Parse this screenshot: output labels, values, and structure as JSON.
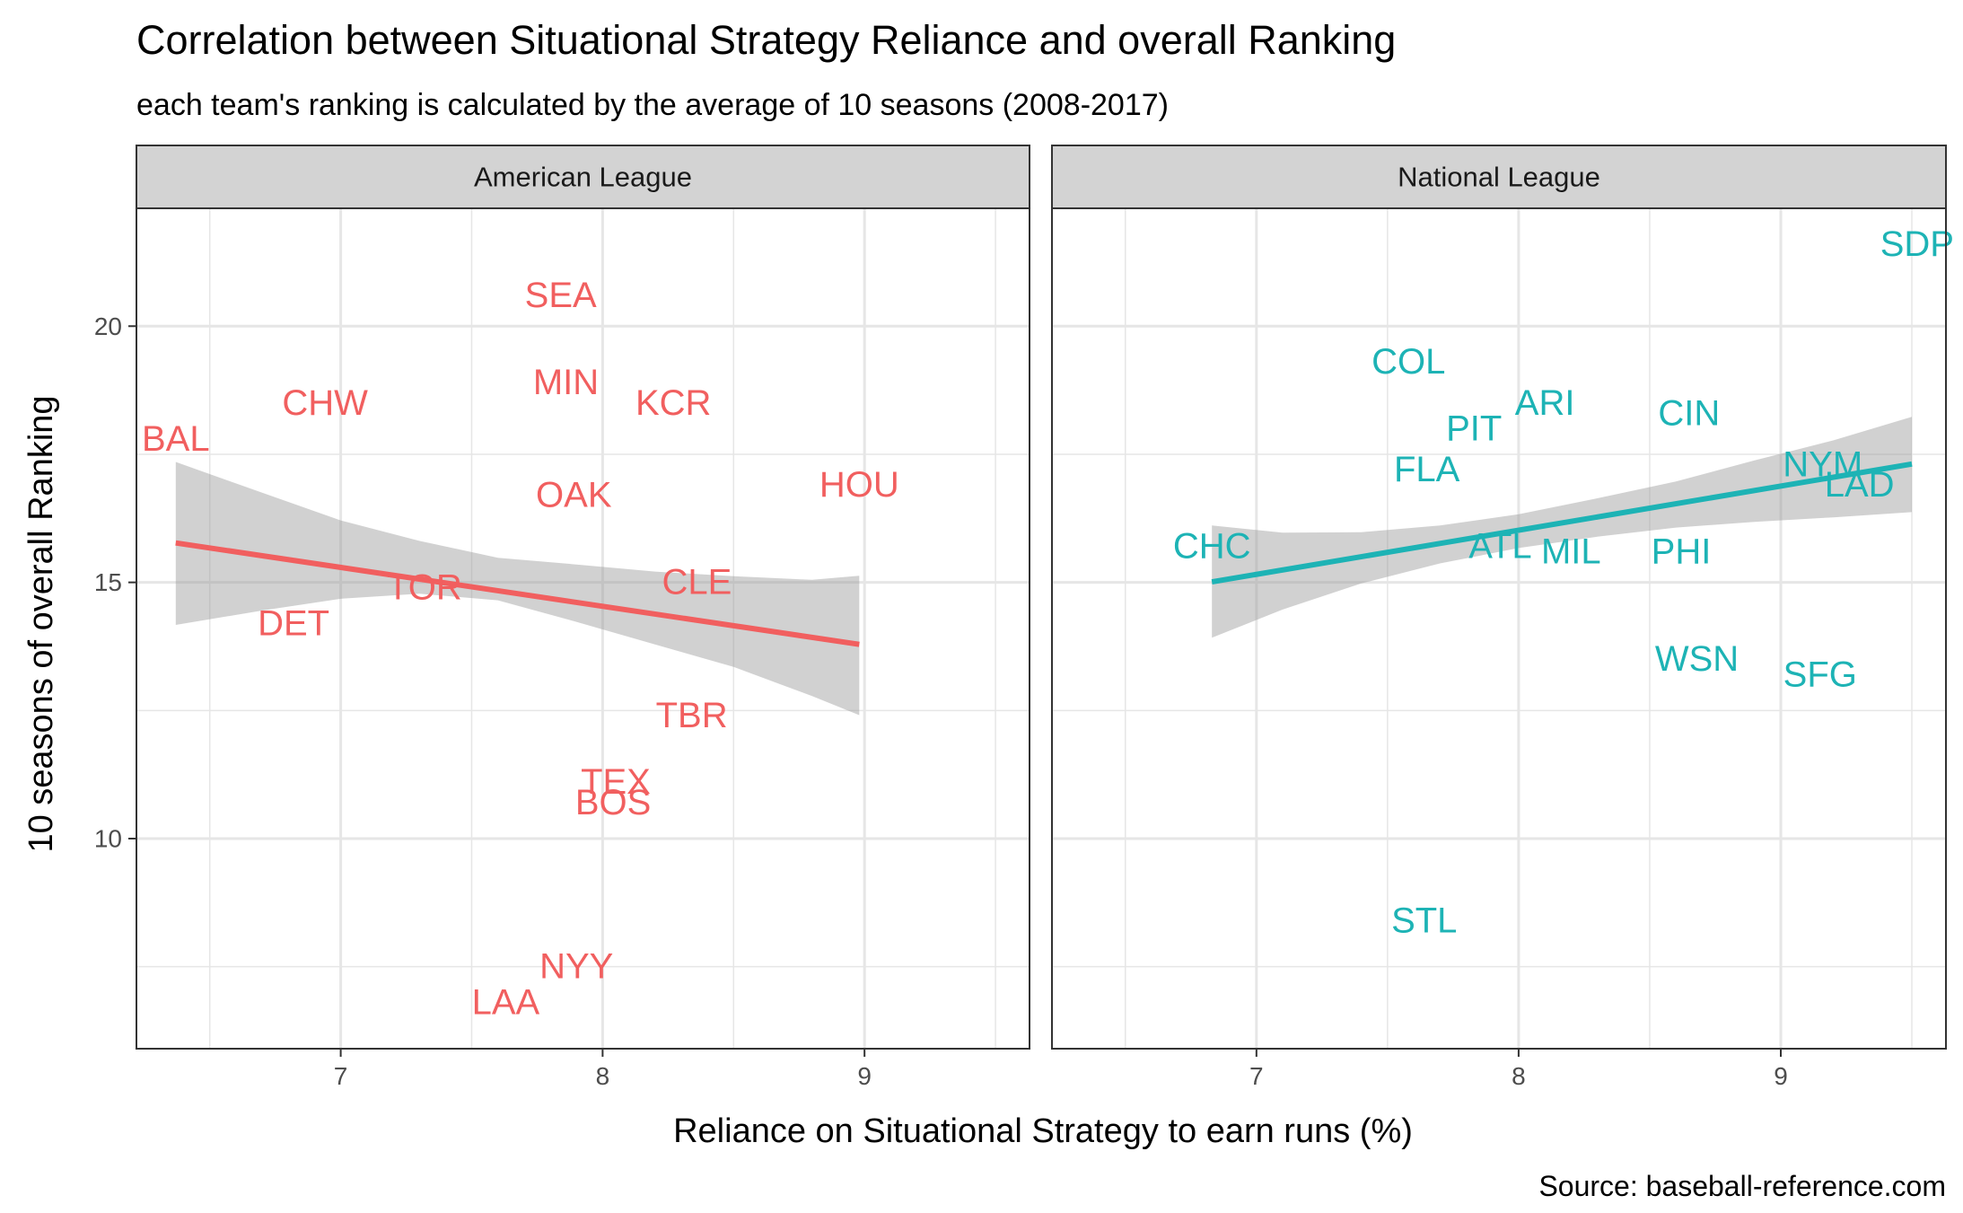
{
  "title": "Correlation between Situational Strategy Reliance and overall Ranking",
  "subtitle": "each team's ranking is calculated by the average of 10 seasons (2008-2017)",
  "caption": "Source: baseball-reference.com",
  "colors": {
    "american": "#F15F5F",
    "national": "#1DB3B5",
    "band": "#999999",
    "strip_bg": "#D3D3D3",
    "grid": "#E6E6E6",
    "border": "#333333"
  },
  "chart_data": {
    "type": "scatter",
    "facet_by": "League",
    "xlabel": "Reliance on Situational Strategy to earn runs (%)",
    "ylabel": "10 seasons of overall Ranking",
    "xlim": [
      6.22,
      9.63
    ],
    "ylim": [
      5.9,
      22.3
    ],
    "x_ticks": [
      7,
      8,
      9
    ],
    "y_ticks": [
      10,
      15,
      20
    ],
    "grid": true,
    "legend": "none",
    "panels": [
      {
        "name": "American League",
        "color": "american",
        "points": [
          {
            "label": "SEA",
            "x": 7.84,
            "y": 20.6
          },
          {
            "label": "MIN",
            "x": 7.86,
            "y": 18.9
          },
          {
            "label": "KCR",
            "x": 8.27,
            "y": 18.5
          },
          {
            "label": "CHW",
            "x": 6.94,
            "y": 18.5
          },
          {
            "label": "BAL",
            "x": 6.37,
            "y": 17.8
          },
          {
            "label": "HOU",
            "x": 8.98,
            "y": 16.9
          },
          {
            "label": "OAK",
            "x": 7.89,
            "y": 16.7
          },
          {
            "label": "CLE",
            "x": 8.36,
            "y": 15.0
          },
          {
            "label": "TOR",
            "x": 7.32,
            "y": 14.9
          },
          {
            "label": "DET",
            "x": 6.82,
            "y": 14.2
          },
          {
            "label": "TBR",
            "x": 8.34,
            "y": 12.4
          },
          {
            "label": "TEX",
            "x": 8.05,
            "y": 11.1
          },
          {
            "label": "BOS",
            "x": 8.04,
            "y": 10.7
          },
          {
            "label": "NYY",
            "x": 7.9,
            "y": 7.5
          },
          {
            "label": "LAA",
            "x": 7.63,
            "y": 6.8
          }
        ],
        "fit": {
          "x": [
            6.37,
            8.98
          ],
          "y": [
            15.77,
            13.79
          ],
          "band_x": [
            6.37,
            6.7,
            7.0,
            7.3,
            7.6,
            7.9,
            8.2,
            8.5,
            8.8,
            8.98
          ],
          "band_lower": [
            14.17,
            14.45,
            14.68,
            14.78,
            14.65,
            14.23,
            13.79,
            13.35,
            12.78,
            12.41
          ],
          "band_upper": [
            17.35,
            16.75,
            16.21,
            15.81,
            15.48,
            15.35,
            15.21,
            15.12,
            15.05,
            15.13
          ]
        }
      },
      {
        "name": "National League",
        "color": "national",
        "points": [
          {
            "label": "SDP",
            "x": 9.52,
            "y": 21.6
          },
          {
            "label": "COL",
            "x": 7.58,
            "y": 19.3
          },
          {
            "label": "ARI",
            "x": 8.1,
            "y": 18.5
          },
          {
            "label": "CIN",
            "x": 8.65,
            "y": 18.3
          },
          {
            "label": "PIT",
            "x": 7.83,
            "y": 18.0
          },
          {
            "label": "NYM",
            "x": 9.16,
            "y": 17.3
          },
          {
            "label": "FLA",
            "x": 7.65,
            "y": 17.2
          },
          {
            "label": "LAD",
            "x": 9.3,
            "y": 16.9
          },
          {
            "label": "CHC",
            "x": 6.83,
            "y": 15.7
          },
          {
            "label": "ATL",
            "x": 7.93,
            "y": 15.7
          },
          {
            "label": "MIL",
            "x": 8.2,
            "y": 15.6
          },
          {
            "label": "PHI",
            "x": 8.62,
            "y": 15.6
          },
          {
            "label": "WSN",
            "x": 8.68,
            "y": 13.5
          },
          {
            "label": "SFG",
            "x": 9.15,
            "y": 13.2
          },
          {
            "label": "STL",
            "x": 7.64,
            "y": 8.4
          }
        ],
        "fit": {
          "x": [
            6.83,
            9.5
          ],
          "y": [
            15.01,
            17.31
          ],
          "band_x": [
            6.83,
            7.1,
            7.4,
            7.7,
            8.0,
            8.3,
            8.6,
            8.9,
            9.2,
            9.5
          ],
          "band_lower": [
            13.92,
            14.47,
            14.98,
            15.37,
            15.67,
            15.89,
            16.07,
            16.18,
            16.27,
            16.37
          ],
          "band_upper": [
            16.11,
            15.97,
            15.98,
            16.11,
            16.33,
            16.64,
            16.97,
            17.38,
            17.77,
            18.23
          ]
        }
      }
    ]
  }
}
